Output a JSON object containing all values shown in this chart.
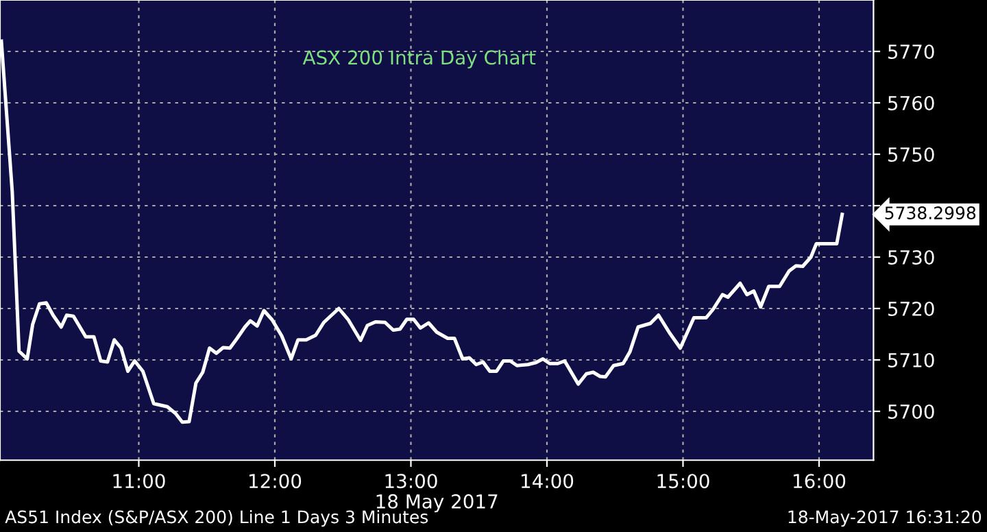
{
  "chart_data": {
    "type": "line",
    "title": "ASX 200 Intra Day Chart",
    "xlabel": "18 May 2017",
    "annotations": [
      "5738.2998",
      "AS51 Index (S&P/ASX 200) Line 1 Days 3 Minutes",
      "18-May-2017 16:31:20"
    ],
    "x": [
      9.99,
      10.07,
      10.12,
      10.18,
      10.22,
      10.27,
      10.32,
      10.37,
      10.43,
      10.47,
      10.52,
      10.61,
      10.67,
      10.72,
      10.77,
      10.82,
      10.87,
      10.92,
      10.97,
      11.03,
      11.11,
      11.21,
      11.27,
      11.32,
      11.37,
      11.42,
      11.47,
      11.52,
      11.57,
      11.62,
      11.67,
      11.72,
      11.78,
      11.82,
      11.87,
      11.92,
      11.98,
      12.05,
      12.12,
      12.17,
      12.23,
      12.3,
      12.36,
      12.47,
      12.54,
      12.63,
      12.68,
      12.74,
      12.81,
      12.87,
      12.92,
      12.97,
      13.02,
      13.07,
      13.13,
      13.19,
      13.27,
      13.32,
      13.38,
      13.43,
      13.48,
      13.53,
      13.58,
      13.63,
      13.68,
      13.73,
      13.78,
      13.86,
      13.92,
      13.97,
      14.02,
      14.08,
      14.13,
      14.23,
      14.29,
      14.34,
      14.39,
      14.43,
      14.49,
      14.56,
      14.61,
      14.67,
      14.76,
      14.82,
      14.9,
      14.98,
      15.08,
      15.17,
      15.22,
      15.29,
      15.33,
      15.42,
      15.47,
      15.52,
      15.57,
      15.63,
      15.71,
      15.78,
      15.83,
      15.88,
      15.94,
      15.98,
      16.13,
      16.17
    ],
    "series": [
      {
        "color": "#ffffff",
        "values": [
          5772,
          5742.7,
          5711.7,
          5710.2,
          5716.9,
          5720.9,
          5721.1,
          5718.7,
          5716.4,
          5718.7,
          5718.5,
          5714.5,
          5714.5,
          5709.8,
          5709.6,
          5713.9,
          5712.3,
          5707.8,
          5709.8,
          5707.8,
          5701.5,
          5700.9,
          5699.6,
          5697.9,
          5698.0,
          5705.5,
          5707.6,
          5712.3,
          5711.3,
          5712.4,
          5712.3,
          5714.1,
          5716.4,
          5717.6,
          5716.6,
          5719.6,
          5717.8,
          5714.7,
          5710.2,
          5713.9,
          5713.9,
          5714.8,
          5717.3,
          5720.0,
          5717.8,
          5713.8,
          5716.7,
          5717.4,
          5717.3,
          5715.8,
          5716.0,
          5717.9,
          5717.9,
          5716.2,
          5717.2,
          5715.4,
          5714.2,
          5714.2,
          5710.2,
          5710.4,
          5709.1,
          5709.6,
          5707.8,
          5707.8,
          5709.8,
          5709.8,
          5708.9,
          5709.1,
          5709.5,
          5710.2,
          5709.3,
          5709.3,
          5709.8,
          5705.3,
          5707.3,
          5707.6,
          5706.8,
          5706.7,
          5708.9,
          5709.3,
          5711.6,
          5716.4,
          5717.1,
          5718.7,
          5715.3,
          5712.3,
          5718.2,
          5718.2,
          5719.8,
          5722.7,
          5722.2,
          5724.9,
          5722.7,
          5723.4,
          5720.3,
          5724.3,
          5724.3,
          5727.3,
          5728.3,
          5728.2,
          5730.0,
          5732.6,
          5732.6,
          5738.3
        ]
      }
    ],
    "xlim": [
      9.98,
      16.4
    ],
    "xticks": [
      {
        "value": 11,
        "label": "11:00"
      },
      {
        "value": 12,
        "label": "12:00"
      },
      {
        "value": 13,
        "label": "13:00"
      },
      {
        "value": 14,
        "label": "14:00"
      },
      {
        "value": 15,
        "label": "15:00"
      },
      {
        "value": 16,
        "label": "16:00"
      }
    ],
    "ylim": [
      5690.5,
      5780
    ],
    "yticks": [
      5700,
      5710,
      5720,
      5730,
      {
        "value": 5740,
        "label": null
      },
      5750,
      5760,
      5770
    ],
    "grid": true,
    "line_style": "solid",
    "marker": "none"
  }
}
